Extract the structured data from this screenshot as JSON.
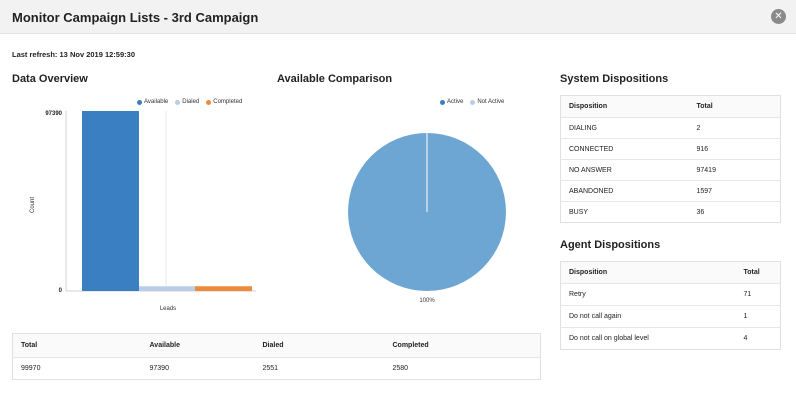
{
  "window": {
    "title": "Monitor Campaign Lists - 3rd Campaign",
    "close_icon": "close-icon"
  },
  "last_refresh": "Last refresh: 13 Nov 2019 12:59:30",
  "data_overview": {
    "title": "Data Overview",
    "legend": [
      {
        "label": "Available",
        "color": "#3a7fc1"
      },
      {
        "label": "Dialed",
        "color": "#b9cde8"
      },
      {
        "label": "Completed",
        "color": "#ee8a3c"
      }
    ],
    "ylabel": "Count",
    "xlabel": "Leads",
    "y_ticks": [
      "97390",
      "0"
    ]
  },
  "chart_data": [
    {
      "type": "bar",
      "categories": [
        "Leads"
      ],
      "series": [
        {
          "name": "Available",
          "values": [
            97390
          ]
        },
        {
          "name": "Dialed",
          "values": [
            2551
          ]
        },
        {
          "name": "Completed",
          "values": [
            2580
          ]
        }
      ],
      "xlabel": "Leads",
      "ylabel": "Count",
      "ylim": [
        0,
        97390
      ]
    },
    {
      "type": "pie",
      "categories": [
        "Active",
        "Not Active"
      ],
      "values": [
        100,
        0
      ],
      "slice_label": "100%"
    }
  ],
  "available_comparison": {
    "title": "Available Comparison",
    "legend": [
      {
        "label": "Active",
        "color": "#3a7fc1"
      },
      {
        "label": "Not Active",
        "color": "#b9cde8"
      }
    ],
    "pie_color": "#6ea6d3",
    "pie_label": "100%"
  },
  "summary_table": {
    "headers": [
      "Total",
      "Available",
      "Dialed",
      "Completed"
    ],
    "row": [
      "99970",
      "97390",
      "2551",
      "2580"
    ]
  },
  "system_dispositions": {
    "title": "System Dispositions",
    "headers": [
      "Disposition",
      "Total"
    ],
    "rows": [
      [
        "DIALING",
        "2"
      ],
      [
        "CONNECTED",
        "916"
      ],
      [
        "NO ANSWER",
        "97419"
      ],
      [
        "ABANDONED",
        "1597"
      ],
      [
        "BUSY",
        "36"
      ]
    ]
  },
  "agent_dispositions": {
    "title": "Agent Dispositions",
    "headers": [
      "Disposition",
      "Total"
    ],
    "rows": [
      [
        "Retry",
        "71"
      ],
      [
        "Do not call again",
        "1"
      ],
      [
        "Do not call on global level",
        "4"
      ]
    ]
  }
}
